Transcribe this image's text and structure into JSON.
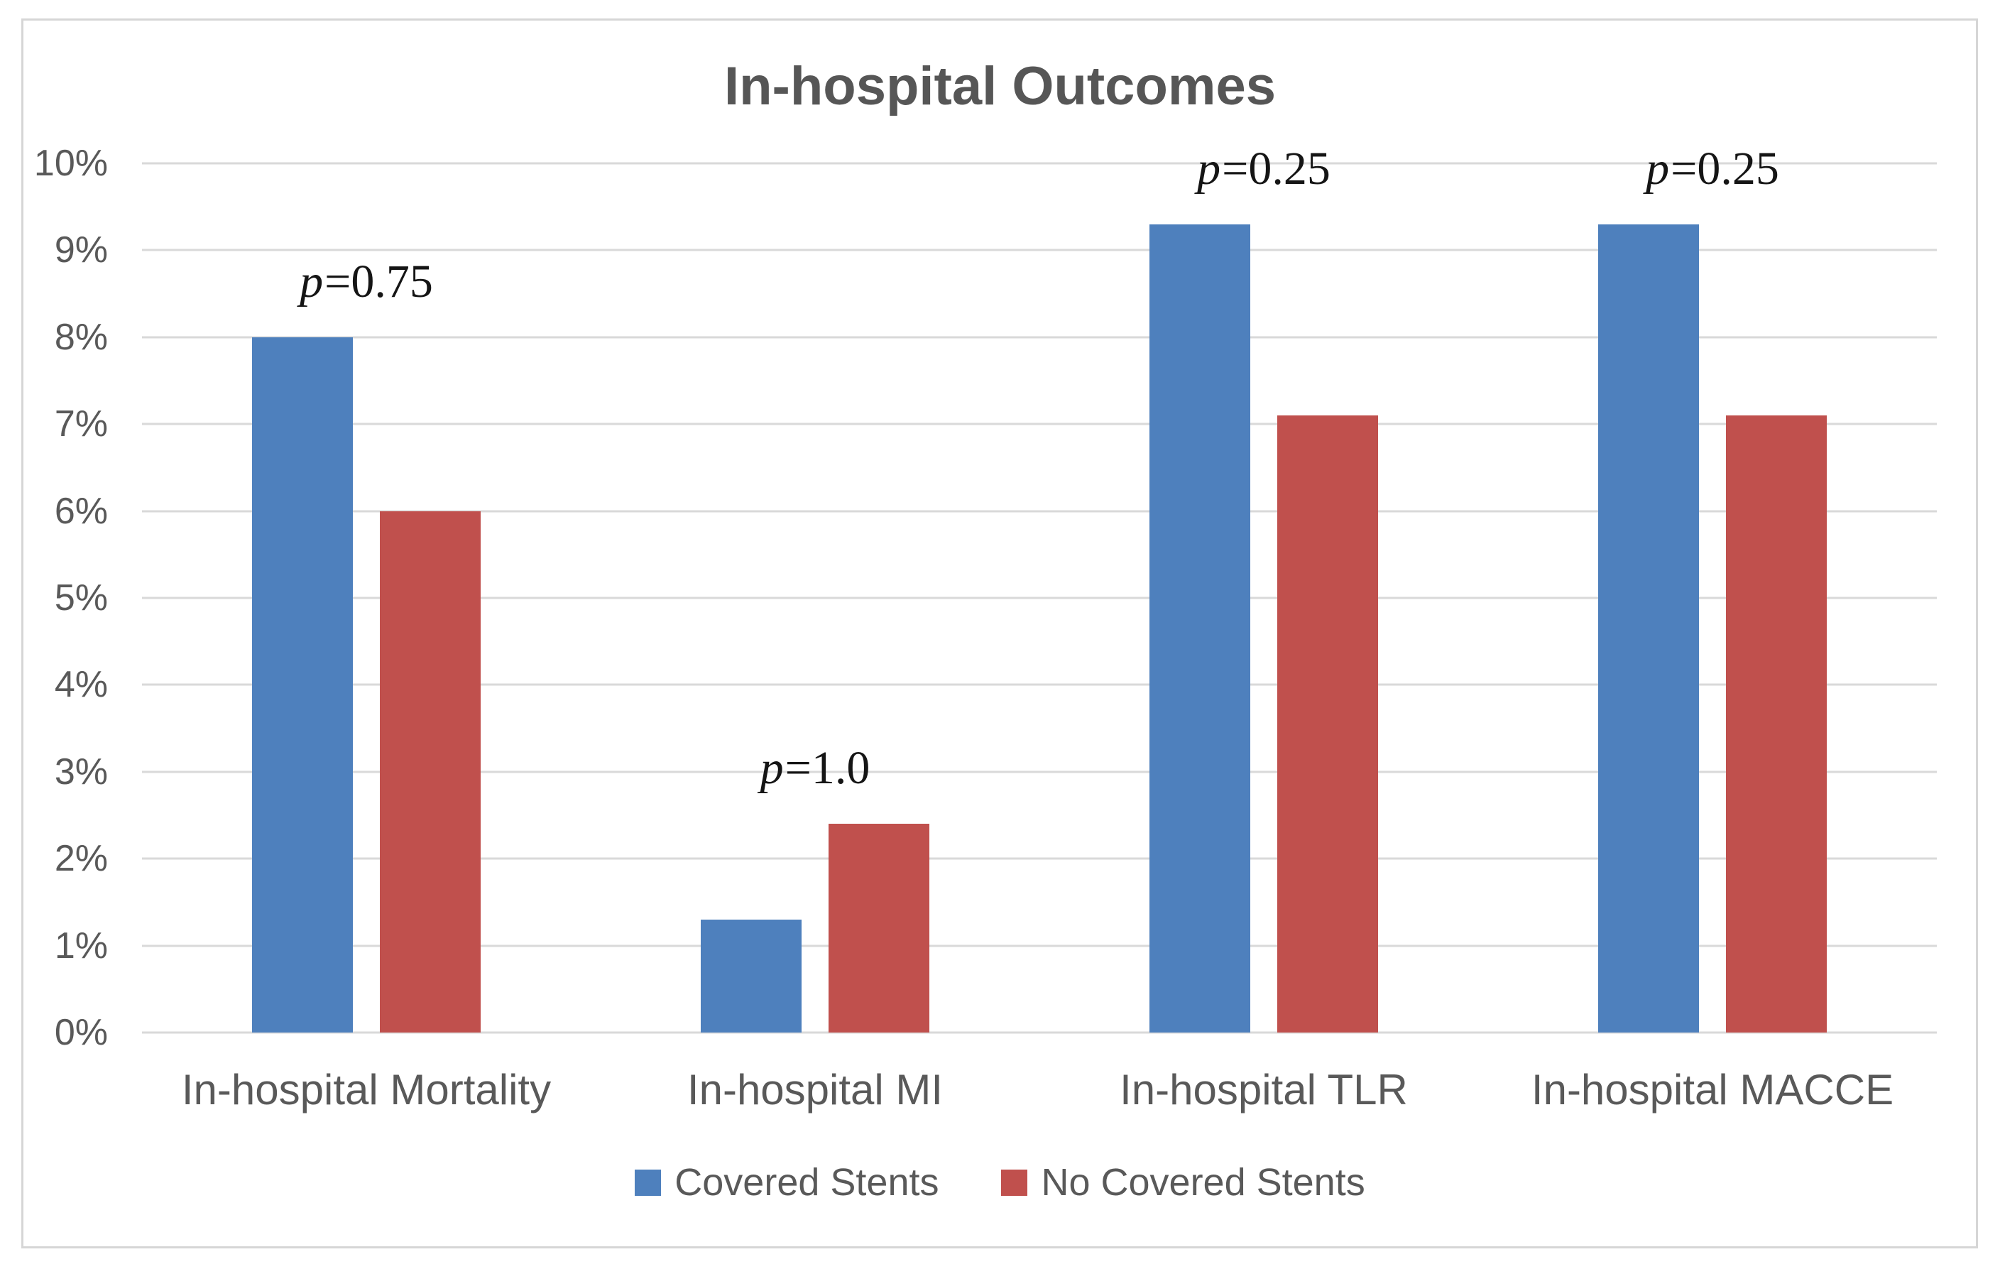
{
  "chart_data": {
    "type": "bar",
    "title": "In-hospital Outcomes",
    "categories": [
      "In-hospital Mortality",
      "In-hospital MI",
      "In-hospital TLR",
      "In-hospital MACCE"
    ],
    "series": [
      {
        "name": "Covered Stents",
        "color": "#4E80BD",
        "values": [
          8.0,
          1.3,
          9.3,
          9.3
        ]
      },
      {
        "name": "No Covered Stents",
        "color": "#C0504D",
        "values": [
          6.0,
          2.4,
          7.1,
          7.1
        ]
      }
    ],
    "annotations": [
      "p=0.75",
      "p=1.0",
      "p=0.25",
      "p=0.25"
    ],
    "xlabel": "",
    "ylabel": "",
    "ylim": [
      0,
      10
    ],
    "ytick_labels": [
      "0%",
      "1%",
      "2%",
      "3%",
      "4%",
      "5%",
      "6%",
      "7%",
      "8%",
      "9%",
      "10%"
    ],
    "grid": true,
    "legend_position": "bottom"
  },
  "colors": {
    "series_blue": "#4E80BD",
    "series_red": "#C0504D",
    "gridline": "#D9D9D9",
    "axis_label_text": "#595959",
    "category_text": "#595959",
    "title_text": "#565656",
    "annotation_text": "#151515",
    "legend_text": "#595959",
    "frame_border": "#D6D6D6",
    "background": "#FFFFFF"
  }
}
